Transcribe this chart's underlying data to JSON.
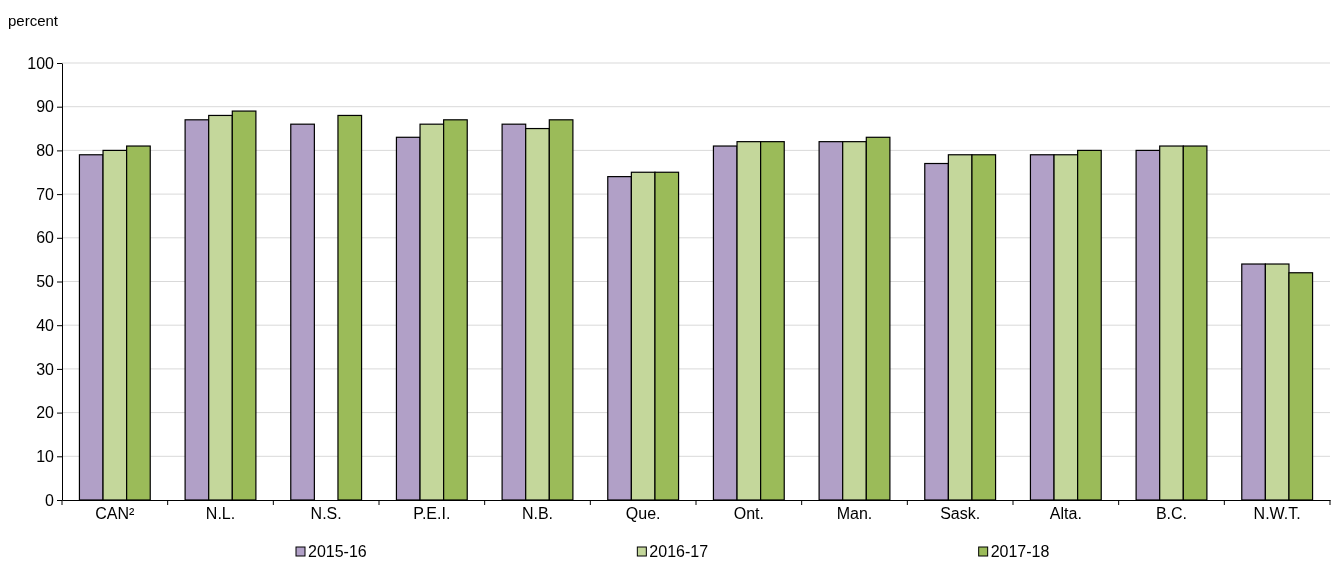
{
  "chart_data": {
    "type": "bar",
    "ylabel": "percent",
    "categories": [
      "CAN²",
      "N.L.",
      "N.S.",
      "P.E.I.",
      "N.B.",
      "Que.",
      "Ont.",
      "Man.",
      "Sask.",
      "Alta.",
      "B.C.",
      "N.W.T."
    ],
    "series": [
      {
        "name": "2015-16",
        "color": "#b1a0c7",
        "values": [
          79,
          87,
          86,
          83,
          86,
          74,
          81,
          82,
          77,
          79,
          80,
          54
        ]
      },
      {
        "name": "2016-17",
        "color": "#c4d79b",
        "values": [
          80,
          88,
          null,
          86,
          85,
          75,
          82,
          82,
          79,
          79,
          81,
          54
        ]
      },
      {
        "name": "2017-18",
        "color": "#9bbb59",
        "values": [
          81,
          89,
          88,
          87,
          87,
          75,
          82,
          83,
          79,
          80,
          81,
          52
        ]
      }
    ],
    "ylim": [
      0,
      100
    ],
    "yticks": [
      0,
      10,
      20,
      30,
      40,
      50,
      60,
      70,
      80,
      90,
      100
    ],
    "grid": "y",
    "legend": "bottom"
  }
}
